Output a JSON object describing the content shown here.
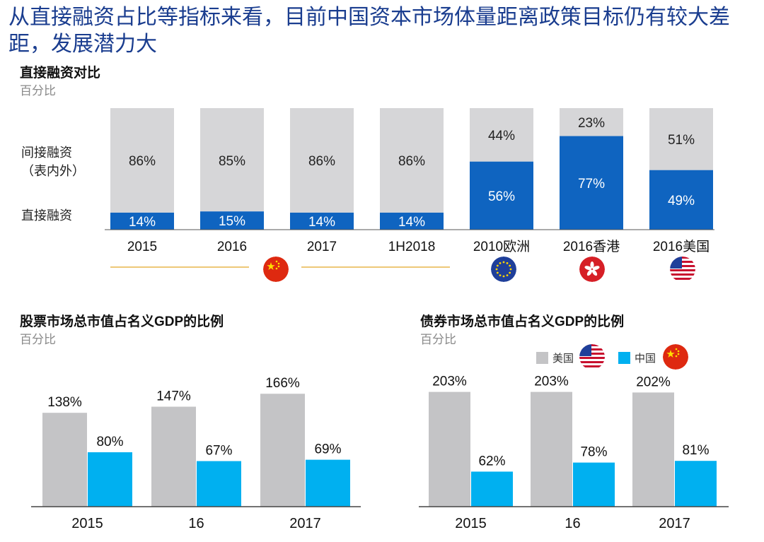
{
  "title": "从直接融资占比等指标来看，目前中国资本市场体量距离政策目标仍有较大差距，发展潜力大",
  "colors": {
    "gray": "#d6d6d8",
    "blue_dark": "#0f64c0",
    "blue_light": "#00b0f0",
    "gray_bar": "#c4c4c6",
    "gold_line": "#e8b54a",
    "title_blue": "#1a3d8f"
  },
  "chart_data": [
    {
      "type": "bar",
      "title": "直接融资对比",
      "unit": "百分比",
      "stacked": true,
      "categories": [
        "2015",
        "2016",
        "2017",
        "1H2018",
        "2010欧洲",
        "2016香港",
        "2016美国"
      ],
      "series": [
        {
          "name": "直接融资",
          "values": [
            14,
            15,
            14,
            14,
            56,
            77,
            49
          ],
          "labels": [
            "14%",
            "15%",
            "14%",
            "14%",
            "56%",
            "77%",
            "49%"
          ]
        },
        {
          "name": "间接融资（表内外）",
          "values": [
            86,
            85,
            86,
            86,
            44,
            23,
            51
          ],
          "labels": [
            "86%",
            "85%",
            "86%",
            "86%",
            "44%",
            "23%",
            "51%"
          ]
        }
      ],
      "series_labels": [
        "间接融资",
        "（表内外）",
        "直接融资"
      ],
      "ylim": [
        0,
        100
      ],
      "flags": [
        "china-flag-icon",
        "eu-flag-icon",
        "hongkong-flag-icon",
        "usa-flag-icon"
      ]
    },
    {
      "type": "bar",
      "title": "股票市场总市值占名义GDP的比例",
      "unit": "百分比",
      "categories": [
        "2015",
        "16",
        "2017"
      ],
      "series": [
        {
          "name": "美国",
          "values": [
            138,
            147,
            166
          ],
          "labels": [
            "138%",
            "147%",
            "166%"
          ]
        },
        {
          "name": "中国",
          "values": [
            80,
            67,
            69
          ],
          "labels": [
            "80%",
            "67%",
            "69%"
          ]
        }
      ],
      "ylim": [
        0,
        240
      ]
    },
    {
      "type": "bar",
      "title": "债券市场总市值占名义GDP的比例",
      "unit": "百分比",
      "categories": [
        "2015",
        "16",
        "2017"
      ],
      "series": [
        {
          "name": "美国",
          "values": [
            203,
            203,
            202
          ],
          "labels": [
            "203%",
            "203%",
            "202%"
          ]
        },
        {
          "name": "中国",
          "values": [
            62,
            78,
            81
          ],
          "labels": [
            "62%",
            "78%",
            "81%"
          ]
        }
      ],
      "ylim": [
        0,
        290
      ],
      "legend": [
        {
          "label": "美国",
          "color": "#c4c4c6"
        },
        {
          "label": "中国",
          "color": "#00b0f0"
        }
      ]
    }
  ]
}
